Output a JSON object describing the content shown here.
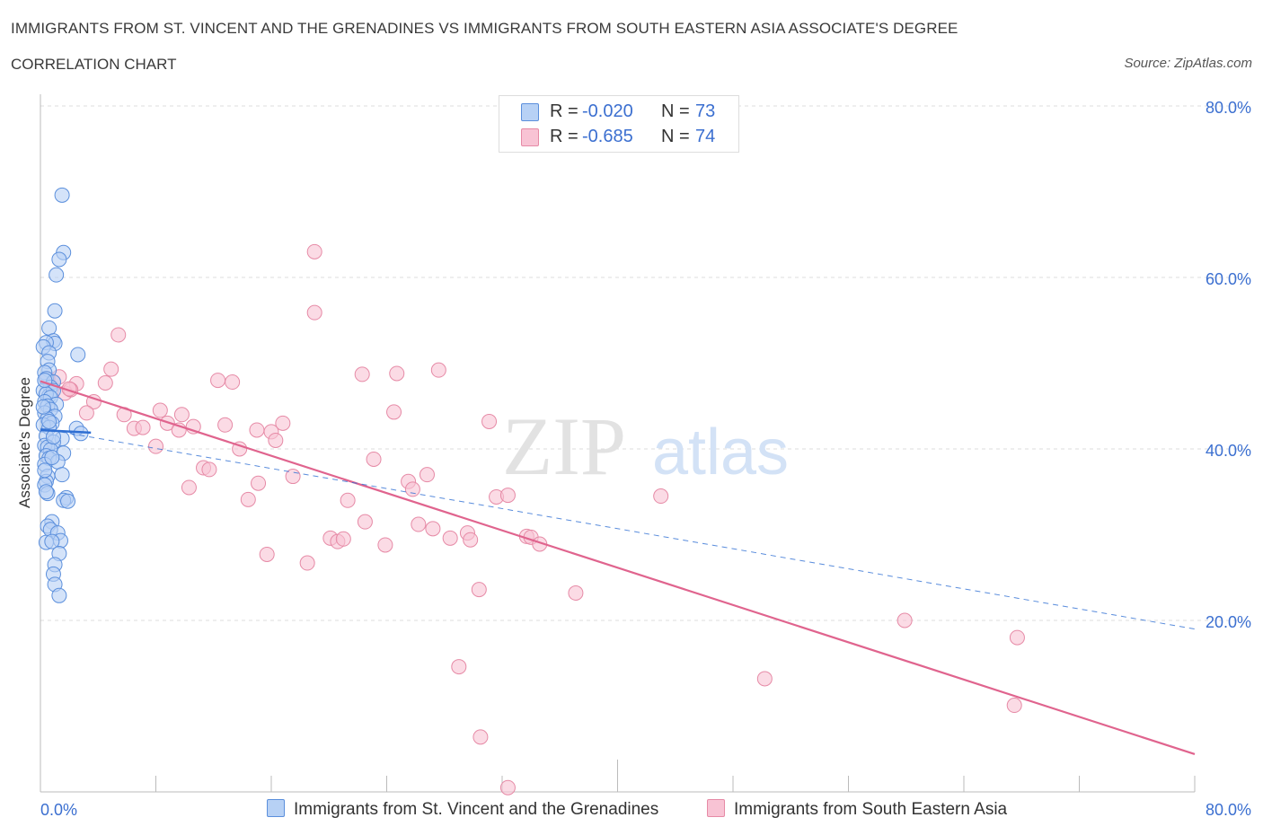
{
  "header": {
    "title": "IMMIGRANTS FROM ST. VINCENT AND THE GRENADINES VS IMMIGRANTS FROM SOUTH EASTERN ASIA ASSOCIATE'S DEGREE",
    "subtitle": "CORRELATION CHART",
    "source": "Source: ZipAtlas.com"
  },
  "legend": {
    "series1": {
      "r_label": "R =",
      "r_value": "-0.020",
      "n_label": "N =",
      "n_value": "73"
    },
    "series2": {
      "r_label": "R =",
      "r_value": "-0.685",
      "n_label": "N =",
      "n_value": "74"
    }
  },
  "watermark": {
    "zip": "ZIP",
    "atlas": "atlas"
  },
  "colors": {
    "blue_fill": "#b7d1f5",
    "blue_stroke": "#5b8fdc",
    "blue_line": "#2f6fd3",
    "pink_fill": "#f8c3d4",
    "pink_stroke": "#e68aa6",
    "pink_line": "#e0648e",
    "axis_label": "#3b6fd0",
    "grid": "#dddddd"
  },
  "chart_data": {
    "type": "scatter",
    "title": "IMMIGRANTS FROM ST. VINCENT AND THE GRENADINES VS IMMIGRANTS FROM SOUTH EASTERN ASIA ASSOCIATE'S DEGREE",
    "xlabel": "",
    "ylabel": "Associate's Degree",
    "xlim": [
      0,
      80
    ],
    "ylim": [
      0,
      80
    ],
    "x_tick_labels": [
      "0.0%",
      "80.0%"
    ],
    "y_tick_labels": [
      "20.0%",
      "40.0%",
      "60.0%",
      "80.0%"
    ],
    "y_ticks": [
      20,
      40,
      60,
      80
    ],
    "grid": true,
    "legend_position": "top-center",
    "series": [
      {
        "name": "Immigrants from St. Vincent and the Grenadines",
        "points": [
          [
            1.5,
            69.6
          ],
          [
            1.6,
            62.9
          ],
          [
            1.3,
            62.1
          ],
          [
            1.1,
            60.3
          ],
          [
            1.0,
            56.1
          ],
          [
            0.6,
            54.1
          ],
          [
            0.9,
            52.6
          ],
          [
            1.0,
            52.3
          ],
          [
            0.4,
            52.4
          ],
          [
            0.2,
            51.9
          ],
          [
            0.6,
            51.2
          ],
          [
            2.6,
            51.0
          ],
          [
            0.5,
            50.2
          ],
          [
            0.6,
            49.2
          ],
          [
            0.3,
            48.9
          ],
          [
            0.4,
            48.2
          ],
          [
            0.9,
            47.8
          ],
          [
            0.7,
            47.2
          ],
          [
            0.2,
            46.8
          ],
          [
            0.6,
            46.2
          ],
          [
            0.9,
            46.8
          ],
          [
            0.4,
            46.4
          ],
          [
            0.7,
            46.0
          ],
          [
            0.3,
            45.5
          ],
          [
            1.1,
            45.2
          ],
          [
            0.5,
            45.0
          ],
          [
            0.7,
            44.6
          ],
          [
            0.3,
            44.2
          ],
          [
            1.0,
            43.8
          ],
          [
            0.5,
            43.5
          ],
          [
            0.8,
            43.0
          ],
          [
            0.2,
            42.8
          ],
          [
            2.5,
            42.4
          ],
          [
            0.6,
            42.5
          ],
          [
            2.8,
            41.8
          ],
          [
            0.4,
            41.5
          ],
          [
            1.5,
            41.2
          ],
          [
            0.9,
            40.8
          ],
          [
            0.3,
            40.4
          ],
          [
            0.5,
            40.2
          ],
          [
            0.7,
            39.9
          ],
          [
            1.6,
            39.5
          ],
          [
            0.4,
            39.2
          ],
          [
            0.6,
            38.9
          ],
          [
            1.2,
            38.5
          ],
          [
            0.3,
            38.2
          ],
          [
            1.5,
            37.0
          ],
          [
            0.5,
            36.8
          ],
          [
            0.4,
            36.2
          ],
          [
            0.3,
            35.8
          ],
          [
            0.5,
            34.8
          ],
          [
            1.8,
            34.3
          ],
          [
            1.6,
            34.0
          ],
          [
            1.9,
            33.9
          ],
          [
            0.8,
            31.5
          ],
          [
            0.5,
            31.0
          ],
          [
            0.7,
            30.6
          ],
          [
            1.2,
            30.2
          ],
          [
            1.4,
            29.3
          ],
          [
            0.4,
            29.1
          ],
          [
            0.8,
            29.2
          ],
          [
            1.3,
            27.8
          ],
          [
            1.0,
            26.5
          ],
          [
            0.9,
            25.4
          ],
          [
            1.0,
            24.2
          ],
          [
            1.3,
            22.9
          ],
          [
            0.3,
            48.0
          ],
          [
            0.2,
            44.9
          ],
          [
            0.9,
            41.4
          ],
          [
            0.3,
            37.5
          ],
          [
            0.6,
            43.2
          ],
          [
            0.4,
            35.0
          ],
          [
            0.8,
            39.0
          ]
        ],
        "trend": [
          [
            0,
            42.2
          ],
          [
            3.5,
            41.9
          ]
        ],
        "trend_extended": [
          [
            0,
            42.4
          ],
          [
            80,
            19.0
          ]
        ]
      },
      {
        "name": "Immigrants from South Eastern Asia",
        "points": [
          [
            19.0,
            63.0
          ],
          [
            19.0,
            55.9
          ],
          [
            5.4,
            53.3
          ],
          [
            4.9,
            49.3
          ],
          [
            1.3,
            48.4
          ],
          [
            2.5,
            47.6
          ],
          [
            4.5,
            47.7
          ],
          [
            12.3,
            48.0
          ],
          [
            13.3,
            47.8
          ],
          [
            22.3,
            48.7
          ],
          [
            24.7,
            48.8
          ],
          [
            27.6,
            49.2
          ],
          [
            0.9,
            47.8
          ],
          [
            1.7,
            46.5
          ],
          [
            2.1,
            46.9
          ],
          [
            3.7,
            45.5
          ],
          [
            3.2,
            44.2
          ],
          [
            5.8,
            44.0
          ],
          [
            8.3,
            44.5
          ],
          [
            9.8,
            44.0
          ],
          [
            24.5,
            44.3
          ],
          [
            6.5,
            42.4
          ],
          [
            7.1,
            42.5
          ],
          [
            8.8,
            43.0
          ],
          [
            9.6,
            42.2
          ],
          [
            10.6,
            42.6
          ],
          [
            12.8,
            42.8
          ],
          [
            15.0,
            42.2
          ],
          [
            16.0,
            42.0
          ],
          [
            16.8,
            43.0
          ],
          [
            31.1,
            43.2
          ],
          [
            8.0,
            40.3
          ],
          [
            13.8,
            40.0
          ],
          [
            16.3,
            41.0
          ],
          [
            23.1,
            38.8
          ],
          [
            11.3,
            37.8
          ],
          [
            11.7,
            37.6
          ],
          [
            17.5,
            36.8
          ],
          [
            25.5,
            36.2
          ],
          [
            26.8,
            37.0
          ],
          [
            10.3,
            35.5
          ],
          [
            15.1,
            36.0
          ],
          [
            25.8,
            35.3
          ],
          [
            14.4,
            34.1
          ],
          [
            21.3,
            34.0
          ],
          [
            31.6,
            34.4
          ],
          [
            32.4,
            34.6
          ],
          [
            43.0,
            34.5
          ],
          [
            22.5,
            31.5
          ],
          [
            26.2,
            31.2
          ],
          [
            27.2,
            30.7
          ],
          [
            29.6,
            30.2
          ],
          [
            20.1,
            29.6
          ],
          [
            20.6,
            29.2
          ],
          [
            21.0,
            29.5
          ],
          [
            28.4,
            29.6
          ],
          [
            29.8,
            29.4
          ],
          [
            33.7,
            29.8
          ],
          [
            34.0,
            29.7
          ],
          [
            34.6,
            28.9
          ],
          [
            23.9,
            28.8
          ],
          [
            15.7,
            27.7
          ],
          [
            18.5,
            26.7
          ],
          [
            30.4,
            23.6
          ],
          [
            37.1,
            23.2
          ],
          [
            59.9,
            20.0
          ],
          [
            67.7,
            18.0
          ],
          [
            29.0,
            14.6
          ],
          [
            50.2,
            13.2
          ],
          [
            67.5,
            10.1
          ],
          [
            30.5,
            6.4
          ],
          [
            32.4,
            0.5
          ],
          [
            0.5,
            48.2
          ],
          [
            2.0,
            47.0
          ]
        ],
        "trend": [
          [
            0,
            47.9
          ],
          [
            80,
            4.4
          ]
        ]
      }
    ]
  }
}
